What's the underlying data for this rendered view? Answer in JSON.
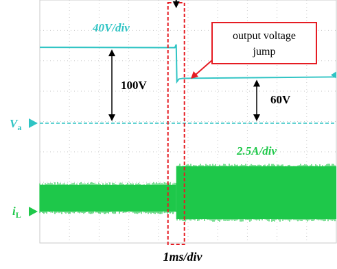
{
  "chart_data": {
    "type": "line",
    "title": "",
    "time_scale": "1ms/div",
    "grid": true,
    "x_divisions": 10,
    "y_divisions": 8,
    "colors": {
      "voltage": "#2fc4c4",
      "current": "#1fc84a",
      "annotation": "#e51c23",
      "text": "#000000"
    },
    "series": [
      {
        "name": "V_o",
        "scale": "40V/div",
        "before_jump_V": 100,
        "after_jump_V": 60
      },
      {
        "name": "i_L",
        "scale": "2.5A/div",
        "before_jump": "lower band",
        "after_jump": "higher band"
      }
    ],
    "jump_time_div": 4.6,
    "markers": {
      "V_a_main": "V",
      "V_a_sub": "a",
      "i_L_main": "i",
      "i_L_sub": "L"
    },
    "annotations": {
      "voltage_scale": "40V/div",
      "current_scale": "2.5A/div",
      "delta_before": "100V",
      "delta_after": "60V",
      "callout_line1": "output voltage",
      "callout_line2": "jump"
    }
  }
}
